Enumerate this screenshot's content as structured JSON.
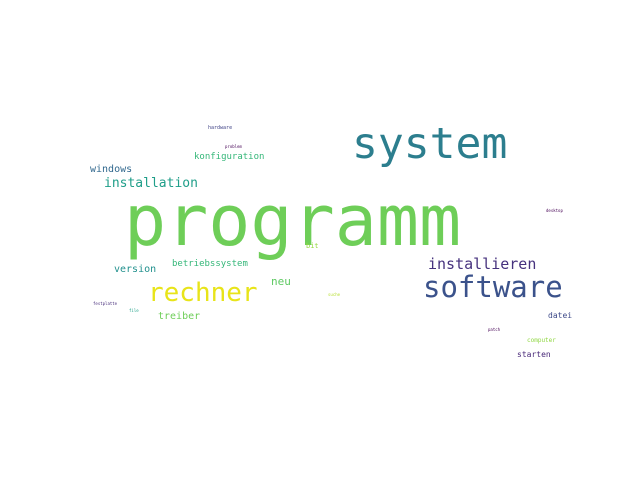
{
  "cloud": {
    "words": [
      {
        "text": "programm",
        "color": "#6ece58"
      },
      {
        "text": "system",
        "color": "#2c7e8e"
      },
      {
        "text": "software",
        "color": "#3b528b"
      },
      {
        "text": "rechner",
        "color": "#e8e419"
      },
      {
        "text": "installieren",
        "color": "#46327e"
      },
      {
        "text": "installation",
        "color": "#1f9e89"
      },
      {
        "text": "windows",
        "color": "#31688e"
      },
      {
        "text": "konfiguration",
        "color": "#35b779"
      },
      {
        "text": "version",
        "color": "#21908d"
      },
      {
        "text": "betriebssystem",
        "color": "#35b779"
      },
      {
        "text": "neu",
        "color": "#5ec962"
      },
      {
        "text": "treiber",
        "color": "#6ece58"
      },
      {
        "text": "bit",
        "color": "#95d840"
      },
      {
        "text": "datei",
        "color": "#3e4a89"
      },
      {
        "text": "starten",
        "color": "#482878"
      },
      {
        "text": "computer",
        "color": "#90d743"
      },
      {
        "text": "hardware",
        "color": "#414487"
      },
      {
        "text": "problem",
        "color": "#440154"
      },
      {
        "text": "desktop",
        "color": "#440154"
      },
      {
        "text": "festplatte",
        "color": "#472d7b"
      },
      {
        "text": "file",
        "color": "#1fa188"
      },
      {
        "text": "suche",
        "color": "#b5de2b"
      },
      {
        "text": "patch",
        "color": "#440154"
      }
    ]
  }
}
